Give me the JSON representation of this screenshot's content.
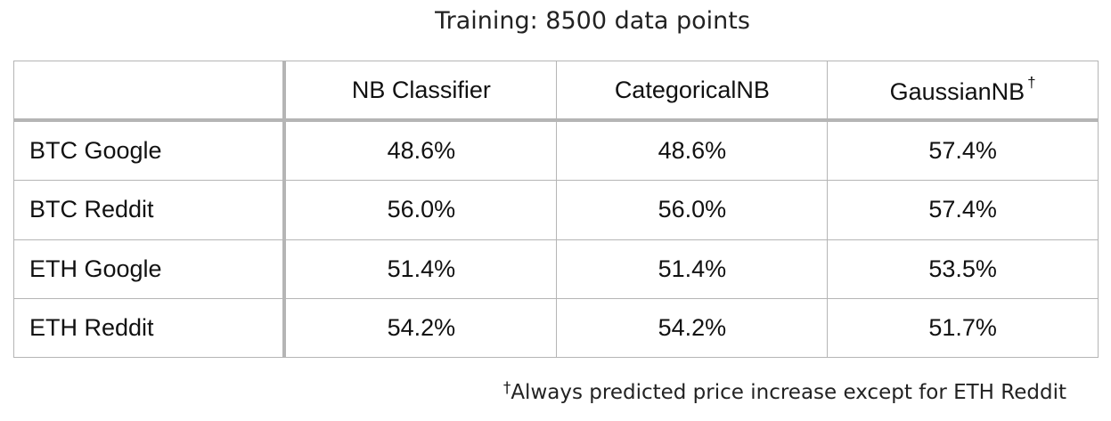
{
  "title": "Training: 8500 data points",
  "table": {
    "headers": [
      "",
      "NB Classifier",
      "CategoricalNB",
      "GaussianNB"
    ],
    "header_marks": [
      "",
      "",
      "",
      "†"
    ],
    "rows": [
      {
        "label": "BTC Google",
        "values": [
          "48.6%",
          "48.6%",
          "57.4%"
        ]
      },
      {
        "label": "BTC Reddit",
        "values": [
          "56.0%",
          "56.0%",
          "57.4%"
        ]
      },
      {
        "label": "ETH Google",
        "values": [
          "51.4%",
          "51.4%",
          "53.5%"
        ]
      },
      {
        "label": "ETH Reddit",
        "values": [
          "54.2%",
          "54.2%",
          "51.7%"
        ]
      }
    ]
  },
  "footnote": {
    "mark": "†",
    "text": "Always predicted price increase except for ETH Reddit"
  }
}
